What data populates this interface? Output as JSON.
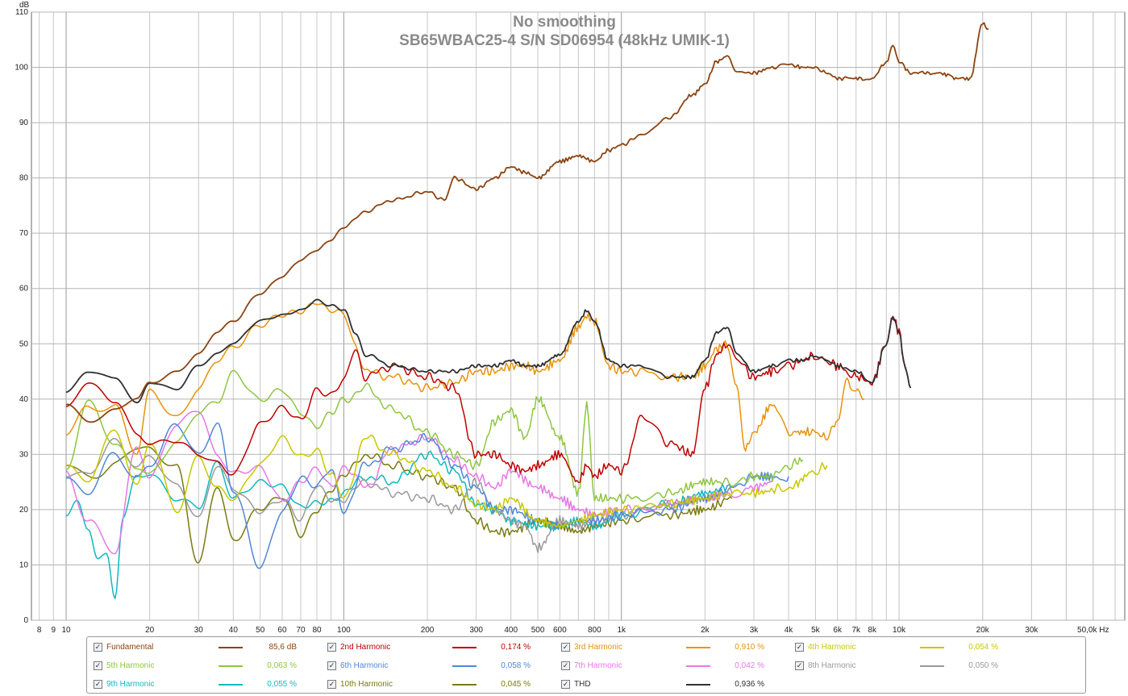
{
  "chart_data": {
    "type": "line",
    "title": "No smoothing",
    "subtitle": "SB65WBAC25-4 S/N SD06954 (48kHz UMIK-1)",
    "ylabel": "dB",
    "xlabel": "Hz",
    "xscale": "log",
    "xlim": [
      7.5,
      65000
    ],
    "ylim": [
      0,
      110
    ],
    "grid": true,
    "x_ticks": [
      {
        "v": 8,
        "label": "8"
      },
      {
        "v": 9,
        "label": "9"
      },
      {
        "v": 10,
        "label": "10"
      },
      {
        "v": 20,
        "label": "20"
      },
      {
        "v": 30,
        "label": "30"
      },
      {
        "v": 40,
        "label": "40"
      },
      {
        "v": 50,
        "label": "50"
      },
      {
        "v": 60,
        "label": "60"
      },
      {
        "v": 70,
        "label": "70"
      },
      {
        "v": 80,
        "label": "80"
      },
      {
        "v": 100,
        "label": "100"
      },
      {
        "v": 200,
        "label": "200"
      },
      {
        "v": 300,
        "label": "300"
      },
      {
        "v": 400,
        "label": "400"
      },
      {
        "v": 500,
        "label": "500"
      },
      {
        "v": 600,
        "label": "600"
      },
      {
        "v": 800,
        "label": "800"
      },
      {
        "v": 1000,
        "label": "1k"
      },
      {
        "v": 2000,
        "label": "2k"
      },
      {
        "v": 3000,
        "label": "3k"
      },
      {
        "v": 4000,
        "label": "4k"
      },
      {
        "v": 5000,
        "label": "5k"
      },
      {
        "v": 6000,
        "label": "6k"
      },
      {
        "v": 7000,
        "label": "7k"
      },
      {
        "v": 8000,
        "label": "8k"
      },
      {
        "v": 10000,
        "label": "10k"
      },
      {
        "v": 20000,
        "label": "20k"
      },
      {
        "v": 30000,
        "label": "30k"
      },
      {
        "v": 50000,
        "label": "50,0k Hz"
      }
    ],
    "y_ticks": [
      0,
      10,
      20,
      30,
      40,
      50,
      60,
      70,
      80,
      90,
      100,
      110
    ],
    "series": [
      {
        "name": "Fundamental",
        "value": "85,6 dB",
        "color": "#8b4513",
        "x": [
          10,
          12,
          15,
          18,
          20,
          25,
          30,
          35,
          40,
          50,
          60,
          70,
          80,
          90,
          100,
          120,
          150,
          200,
          230,
          250,
          300,
          350,
          400,
          450,
          500,
          600,
          700,
          800,
          900,
          1000,
          1200,
          1500,
          1800,
          2000,
          2200,
          2400,
          2600,
          3000,
          3500,
          4000,
          4500,
          5000,
          5500,
          6000,
          7000,
          8000,
          9000,
          9500,
          10000,
          11000,
          12000,
          14000,
          16000,
          18000,
          20000,
          21000
        ],
        "y": [
          39,
          36,
          38,
          40,
          43,
          45,
          48,
          52,
          54,
          59,
          62,
          65,
          67,
          69,
          71,
          74,
          76,
          77.5,
          76,
          80,
          78,
          80,
          82,
          81,
          80,
          83,
          84,
          83,
          85,
          86,
          88,
          91,
          95,
          97,
          101,
          102,
          99,
          99,
          100,
          100.5,
          100,
          100,
          99,
          98,
          98,
          98,
          101,
          104,
          101,
          99,
          99,
          99,
          98,
          98,
          108,
          107
        ]
      },
      {
        "name": "2nd Harmonic",
        "value": "0,174 %",
        "color": "#c00000",
        "x": [
          10,
          12,
          15,
          18,
          20,
          25,
          30,
          35,
          40,
          50,
          60,
          70,
          80,
          90,
          100,
          110,
          120,
          150,
          200,
          250,
          300,
          350,
          400,
          450,
          500,
          600,
          700,
          750,
          800,
          900,
          1000,
          1200,
          1500,
          1800,
          2000,
          2200,
          2400,
          2600,
          3000,
          3500,
          4000,
          4500,
          5000,
          5500,
          6000,
          7000,
          8000,
          9000,
          9500,
          10000,
          10500,
          11000
        ],
        "y": [
          38,
          43,
          40,
          33,
          32,
          33,
          30,
          28,
          26,
          35,
          38,
          36,
          42,
          41,
          43,
          49,
          44,
          46,
          44,
          42,
          30,
          30,
          28,
          27,
          28,
          30,
          25,
          28,
          26,
          28,
          27,
          37,
          32,
          30,
          42,
          48,
          50,
          47,
          44,
          45,
          46,
          47,
          48,
          47,
          46,
          44,
          43,
          50,
          55,
          52,
          46,
          42
        ]
      },
      {
        "name": "3rd Harmonic",
        "value": "0,910 %",
        "color": "#e8920a",
        "x": [
          10,
          12,
          15,
          18,
          20,
          25,
          30,
          35,
          40,
          50,
          60,
          70,
          80,
          90,
          100,
          110,
          120,
          150,
          200,
          250,
          300,
          350,
          400,
          450,
          500,
          600,
          700,
          750,
          800,
          900,
          1000,
          1200,
          1500,
          1800,
          2000,
          2200,
          2400,
          2600,
          2800,
          3000,
          3500,
          4000,
          4500,
          5000,
          5500,
          6000,
          6500,
          7000,
          7500
        ],
        "y": [
          34,
          38,
          39,
          30,
          41,
          37,
          42,
          47,
          49,
          53,
          55,
          56,
          58,
          56,
          55,
          50,
          45,
          44,
          42,
          43,
          45,
          45,
          46,
          46,
          45,
          47,
          53,
          55,
          54,
          46,
          45,
          45,
          44,
          44,
          46,
          49,
          50,
          42,
          31,
          34,
          39,
          34,
          34,
          34,
          33,
          36,
          43,
          42,
          40
        ]
      },
      {
        "name": "4th Harmonic",
        "value": "0,054 %",
        "color": "#c8c800",
        "x": [
          10,
          12,
          15,
          18,
          20,
          25,
          30,
          35,
          40,
          50,
          60,
          70,
          80,
          90,
          100,
          120,
          150,
          200,
          250,
          300,
          350,
          400,
          500,
          600,
          700,
          800,
          1000,
          1500,
          2000,
          2500,
          3000,
          4000,
          5000,
          5500
        ],
        "y": [
          28,
          25,
          35,
          24,
          32,
          20,
          30,
          24,
          22,
          28,
          33,
          30,
          31,
          26,
          22,
          33,
          30,
          27,
          24,
          21,
          20,
          22,
          18,
          17,
          18,
          19,
          20,
          21,
          22,
          23,
          23,
          24,
          27,
          28
        ]
      },
      {
        "name": "5th Harmonic",
        "value": "0,063 %",
        "color": "#8ec63f",
        "x": [
          10,
          12,
          15,
          18,
          20,
          25,
          30,
          35,
          40,
          50,
          60,
          70,
          80,
          90,
          100,
          120,
          150,
          200,
          250,
          300,
          350,
          400,
          450,
          500,
          600,
          700,
          750,
          800,
          1000,
          1500,
          2000,
          2500,
          3000,
          3500,
          4000,
          4500
        ],
        "y": [
          28,
          39,
          32,
          28,
          26,
          32,
          38,
          40,
          45,
          40,
          42,
          38,
          35,
          37,
          40,
          42,
          38,
          34,
          30,
          28,
          36,
          38,
          33,
          40,
          33,
          23,
          39,
          22,
          22,
          23,
          25,
          25,
          26,
          26,
          28,
          29
        ]
      },
      {
        "name": "6th Harmonic",
        "value": "0,058 %",
        "color": "#4f88d8",
        "x": [
          10,
          12,
          15,
          18,
          20,
          25,
          30,
          35,
          40,
          50,
          60,
          70,
          80,
          90,
          100,
          120,
          150,
          200,
          250,
          300,
          350,
          400,
          500,
          600,
          700,
          800,
          1000,
          1500,
          2000,
          2500,
          3000,
          3500,
          4000
        ],
        "y": [
          26,
          23,
          30,
          26,
          28,
          35,
          30,
          36,
          24,
          10,
          20,
          26,
          24,
          27,
          20,
          28,
          31,
          33,
          28,
          24,
          20,
          20,
          18,
          17,
          18,
          18,
          19,
          20,
          22,
          24,
          26,
          26,
          26
        ]
      },
      {
        "name": "7th Harmonic",
        "value": "0,042 %",
        "color": "#e777e7",
        "x": [
          10,
          12,
          15,
          18,
          20,
          25,
          30,
          35,
          40,
          50,
          60,
          70,
          80,
          90,
          100,
          120,
          150,
          200,
          250,
          300,
          350,
          400,
          500,
          600,
          700,
          800,
          1000,
          1500,
          2000,
          2500,
          3000,
          3500
        ],
        "y": [
          27,
          18,
          12,
          32,
          26,
          35,
          38,
          30,
          27,
          28,
          22,
          25,
          27,
          24,
          28,
          24,
          31,
          33,
          29,
          26,
          24,
          27,
          24,
          22,
          20,
          19,
          20,
          21,
          22,
          23,
          24,
          25
        ]
      },
      {
        "name": "8th Harmonic",
        "value": "0,050 %",
        "color": "#9a9a9a",
        "x": [
          10,
          12,
          15,
          18,
          20,
          25,
          30,
          35,
          40,
          50,
          60,
          70,
          80,
          90,
          100,
          120,
          150,
          200,
          250,
          300,
          350,
          400,
          450,
          500,
          600,
          700,
          800,
          1000,
          1500,
          2000,
          2500
        ],
        "y": [
          26,
          27,
          32,
          28,
          30,
          24,
          18,
          28,
          24,
          20,
          22,
          18,
          24,
          22,
          22,
          25,
          23,
          22,
          20,
          25,
          20,
          18,
          17,
          13,
          18,
          17,
          18,
          19,
          21,
          22,
          23
        ]
      },
      {
        "name": "9th Harmonic",
        "value": "0,055 %",
        "color": "#10b8c0",
        "x": [
          10,
          11,
          12,
          13,
          14,
          15,
          16,
          18,
          20,
          25,
          30,
          35,
          40,
          50,
          60,
          70,
          80,
          90,
          100,
          120,
          150,
          200,
          250,
          300,
          350,
          400,
          500,
          600,
          700,
          800,
          1000,
          1500,
          2000,
          2500
        ],
        "y": [
          18,
          22,
          17,
          11,
          12,
          4,
          18,
          26,
          27,
          22,
          20,
          28,
          22,
          25,
          24,
          20,
          21,
          22,
          23,
          26,
          25,
          30,
          27,
          21,
          20,
          18,
          17,
          17,
          18,
          17,
          19,
          21,
          23,
          24
        ]
      },
      {
        "name": "10th Harmonic",
        "value": "0,045 %",
        "color": "#7a7a10",
        "x": [
          10,
          12,
          15,
          18,
          20,
          25,
          30,
          35,
          40,
          50,
          60,
          70,
          80,
          90,
          100,
          120,
          150,
          200,
          250,
          300,
          350,
          400,
          500,
          600,
          700,
          800,
          1000,
          1500,
          2000,
          2500
        ],
        "y": [
          28,
          26,
          28,
          31,
          31,
          28,
          10,
          24,
          14,
          20,
          22,
          15,
          20,
          24,
          26,
          30,
          28,
          26,
          24,
          18,
          16,
          16,
          18,
          17,
          16,
          17,
          18,
          19,
          20,
          22
        ]
      },
      {
        "name": "THD",
        "value": "0,936 %",
        "color": "#303030",
        "x": [
          10,
          12,
          15,
          18,
          20,
          25,
          30,
          35,
          40,
          50,
          60,
          70,
          80,
          90,
          100,
          110,
          120,
          150,
          200,
          250,
          300,
          350,
          400,
          450,
          500,
          600,
          700,
          750,
          800,
          900,
          1000,
          1200,
          1500,
          1800,
          2000,
          2200,
          2400,
          2600,
          3000,
          3500,
          4000,
          4500,
          5000,
          5500,
          6000,
          7000,
          8000,
          9000,
          9500,
          10000,
          10500,
          11000
        ],
        "y": [
          41,
          45,
          44,
          39,
          43,
          42,
          46,
          48,
          50,
          54,
          55,
          56,
          58,
          57,
          56,
          52,
          48,
          46,
          45,
          45,
          46,
          46,
          47,
          46,
          46,
          48,
          54,
          56,
          54,
          47,
          46,
          46,
          44,
          44,
          47,
          52,
          53,
          48,
          45,
          46,
          47,
          47,
          48,
          47,
          46,
          45,
          43,
          50,
          55,
          52,
          46,
          42
        ]
      }
    ]
  }
}
